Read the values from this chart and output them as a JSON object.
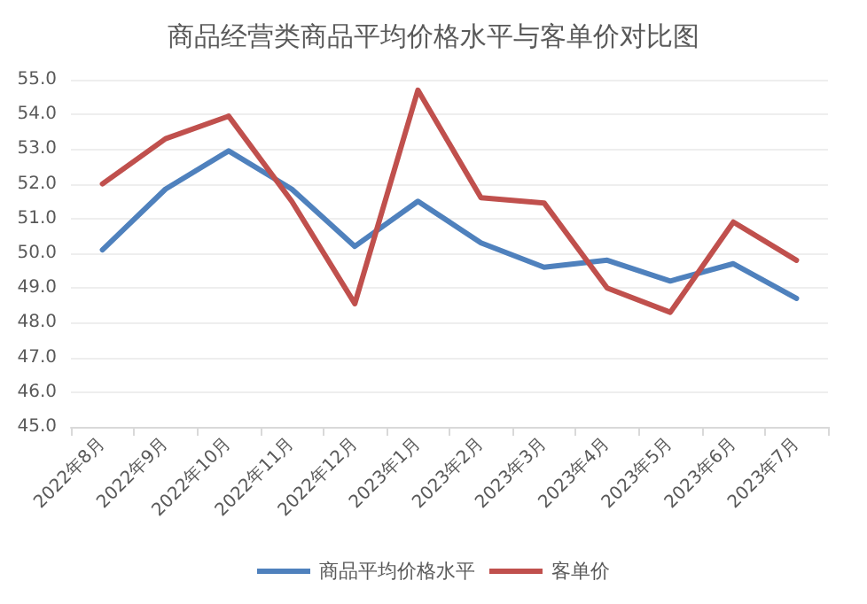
{
  "chart_data": {
    "type": "line",
    "title": "商品经营类商品平均价格水平与客单价对比图",
    "categories": [
      "2022年8月",
      "2022年9月",
      "2022年10月",
      "2022年11月",
      "2022年12月",
      "2023年1月",
      "2023年2月",
      "2023年3月",
      "2023年4月",
      "2023年5月",
      "2023年6月",
      "2023年7月"
    ],
    "series": [
      {
        "name": "商品平均价格水平",
        "color": "#4f81bd",
        "values": [
          50.1,
          51.85,
          52.95,
          51.85,
          50.2,
          51.5,
          50.3,
          49.6,
          49.8,
          49.2,
          49.7,
          48.7
        ]
      },
      {
        "name": "客单价",
        "color": "#c0504d",
        "values": [
          52.0,
          53.3,
          53.95,
          51.5,
          48.55,
          54.7,
          51.6,
          51.45,
          49.0,
          48.3,
          50.9,
          49.8
        ]
      }
    ],
    "ylim": [
      45,
      55
    ],
    "yticks": [
      {
        "value": 45,
        "label": "45.0"
      },
      {
        "value": 46,
        "label": "46.0"
      },
      {
        "value": 47,
        "label": "47.0"
      },
      {
        "value": 48,
        "label": "48.0"
      },
      {
        "value": 49,
        "label": "49.0"
      },
      {
        "value": 50,
        "label": "50.0"
      },
      {
        "value": 51,
        "label": "51.0"
      },
      {
        "value": 52,
        "label": "52.0"
      },
      {
        "value": 53,
        "label": "53.0"
      },
      {
        "value": 54,
        "label": "54.0"
      },
      {
        "value": 55,
        "label": "55.0"
      }
    ],
    "grid": "y",
    "legend": "bottom",
    "marker": "none",
    "line_style": "solid"
  }
}
